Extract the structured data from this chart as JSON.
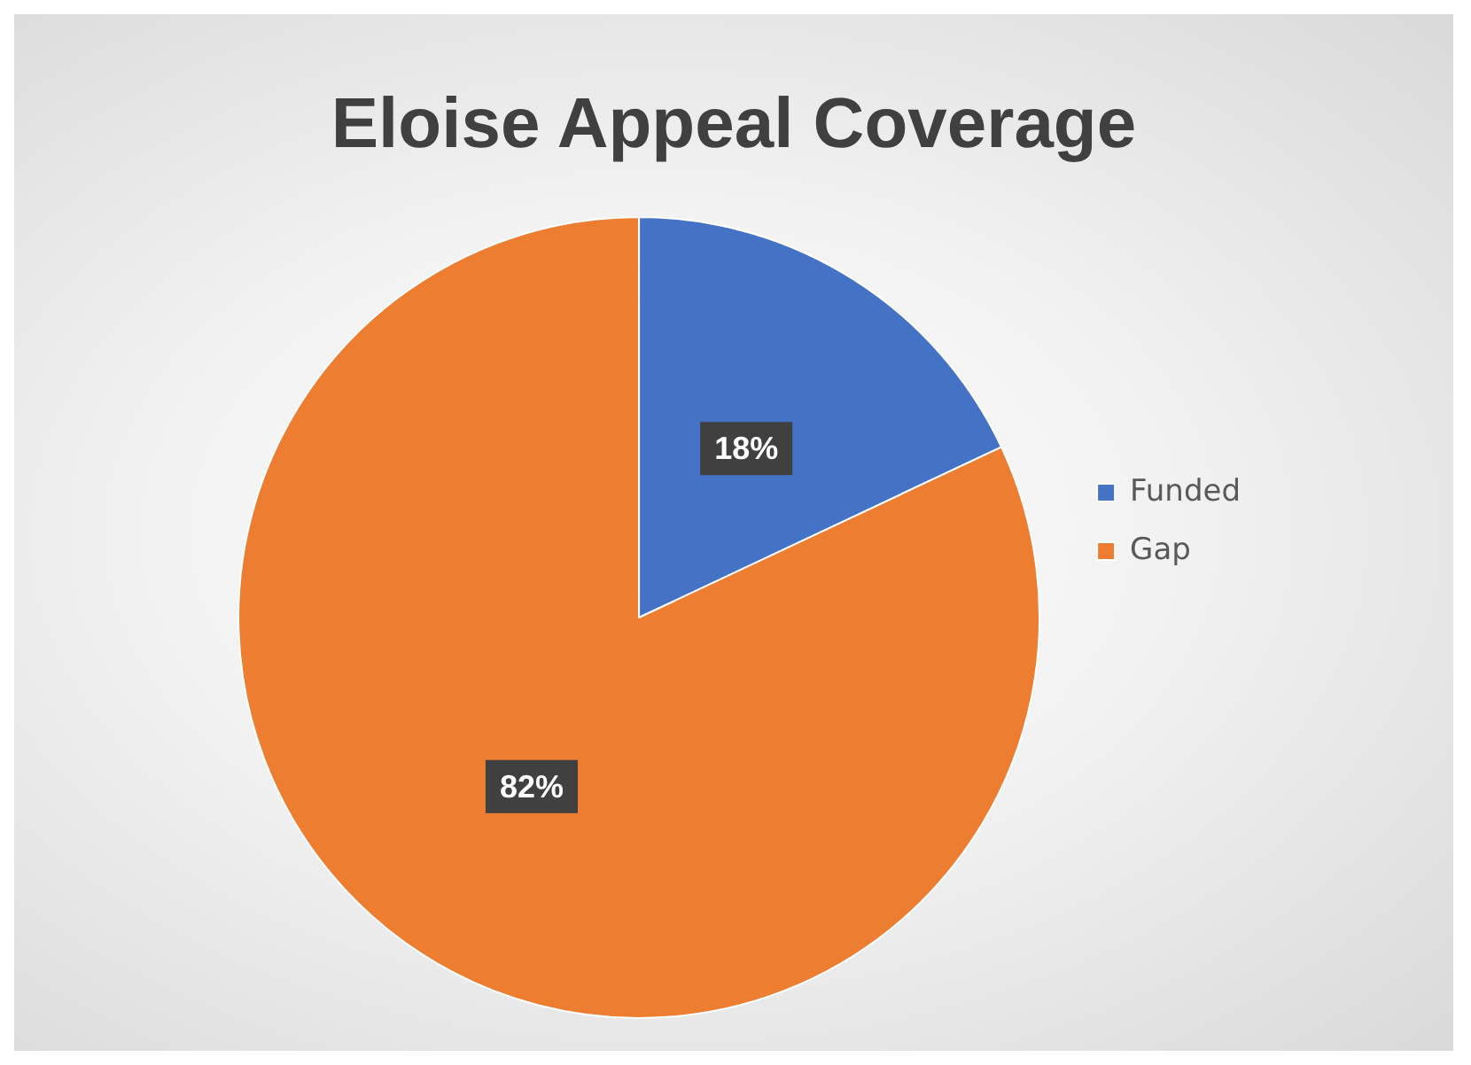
{
  "chart_data": {
    "type": "pie",
    "title": "Eloise Appeal Coverage",
    "categories": [
      "Funded",
      "Gap"
    ],
    "values": [
      18,
      82
    ],
    "colors": [
      "#4472c4",
      "#ed7d31"
    ],
    "value_labels": [
      "18%",
      "82%"
    ],
    "legend": "right"
  }
}
